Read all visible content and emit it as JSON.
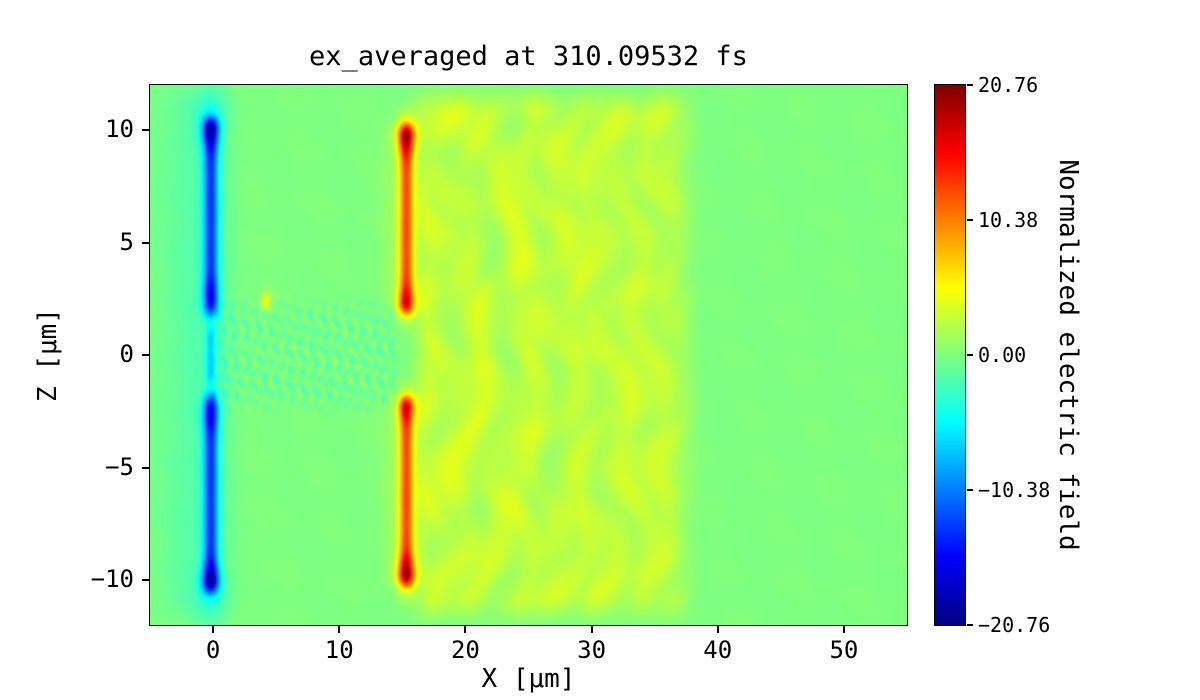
{
  "figure": {
    "background": "#ffffff"
  },
  "chart_data": {
    "type": "heatmap",
    "title": "ex_averaged at 310.09532 fs",
    "time_fs": 310.09532,
    "xlabel": "X [μm]",
    "ylabel": "Z [μm]",
    "x_range": [
      -5,
      55
    ],
    "z_range": [
      -12,
      12
    ],
    "x_ticks": [
      0,
      10,
      20,
      30,
      40,
      50
    ],
    "z_ticks": [
      10,
      5,
      0,
      -5,
      -10
    ],
    "colormap": "jet",
    "grid": false,
    "colorbar": {
      "label": "Normalized electric field",
      "ticks": [
        20.76,
        10.38,
        0.0,
        -10.38,
        -20.76
      ],
      "vmin": -20.76,
      "vmax": 20.76,
      "position": "right"
    },
    "features": {
      "background_value": 0.0,
      "left_plate": {
        "x_center": -0.2,
        "x_sigma": 0.42,
        "z_inner": 1.8,
        "z_outer": 10.5,
        "value": -11.5,
        "tip_z": 10.0,
        "tip_value": -6.5,
        "inner_gap_value": -5.0,
        "halo_value": -2.0
      },
      "right_plate": {
        "x_center": 15.3,
        "x_sigma": 0.38,
        "z_inner": 2.0,
        "z_outer": 10.1,
        "value": 10.5,
        "tip_z": 9.8,
        "tip_value": 8.0,
        "inner_tip_value": 5.5,
        "halo_value": 2.2
      },
      "wake_region": {
        "x_start": 15.6,
        "x_end": 38.6,
        "value": 2.6
      },
      "hot_spot": {
        "x": 4.2,
        "z": 2.4,
        "value": 4.5,
        "sigma": 0.3
      }
    }
  }
}
